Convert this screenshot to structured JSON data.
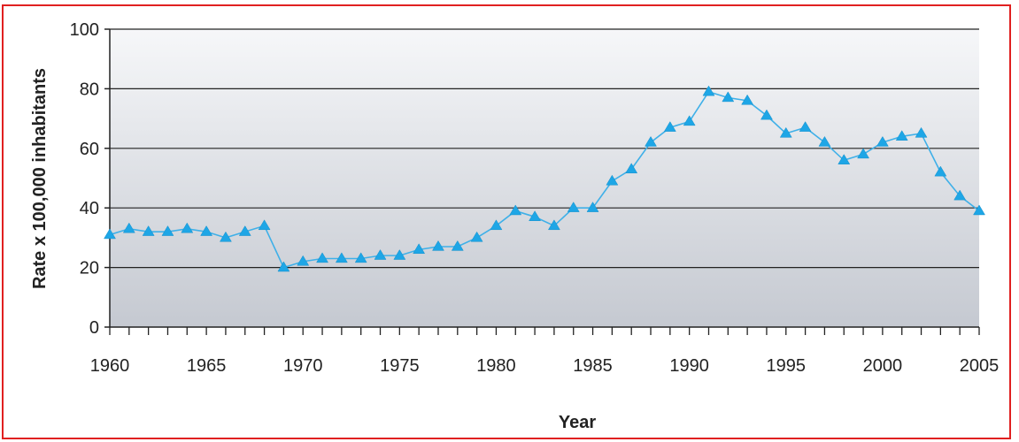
{
  "chart_data": {
    "type": "line",
    "title": "",
    "xlabel": "Year",
    "ylabel": "Rate x 100,000 inhabitants",
    "xlim": [
      1960,
      2005
    ],
    "ylim": [
      0,
      100
    ],
    "x_ticks": [
      1960,
      1965,
      1970,
      1975,
      1980,
      1985,
      1990,
      1995,
      2000,
      2005
    ],
    "y_ticks": [
      0,
      20,
      40,
      60,
      80,
      100
    ],
    "grid": "horizontal",
    "legend": "none",
    "colors": {
      "series": "#3fb0e8",
      "marker": "#1ea6e6",
      "plot_top": "#f6f7f9",
      "plot_bottom": "#c5c9d1",
      "gridline": "#222222",
      "frame": "#e02020"
    },
    "series": [
      {
        "x": [
          1960,
          1961,
          1962,
          1963,
          1964,
          1965,
          1966,
          1967,
          1968,
          1969,
          1970,
          1971,
          1972,
          1973,
          1974,
          1975,
          1976,
          1977,
          1978,
          1979,
          1980,
          1981,
          1982,
          1983,
          1984,
          1985,
          1986,
          1987,
          1988,
          1989,
          1990,
          1991,
          1992,
          1993,
          1994,
          1995,
          1996,
          1997,
          1998,
          1999,
          2000,
          2001,
          2002,
          2003,
          2004,
          2005
        ],
        "values": [
          31,
          33,
          32,
          32,
          33,
          32,
          30,
          32,
          34,
          20,
          22,
          23,
          23,
          23,
          24,
          24,
          26,
          27,
          27,
          30,
          34,
          39,
          37,
          34,
          40,
          40,
          49,
          53,
          62,
          67,
          69,
          79,
          77,
          76,
          71,
          65,
          67,
          62,
          56,
          58,
          62,
          64,
          65,
          52,
          44,
          39
        ]
      }
    ]
  }
}
